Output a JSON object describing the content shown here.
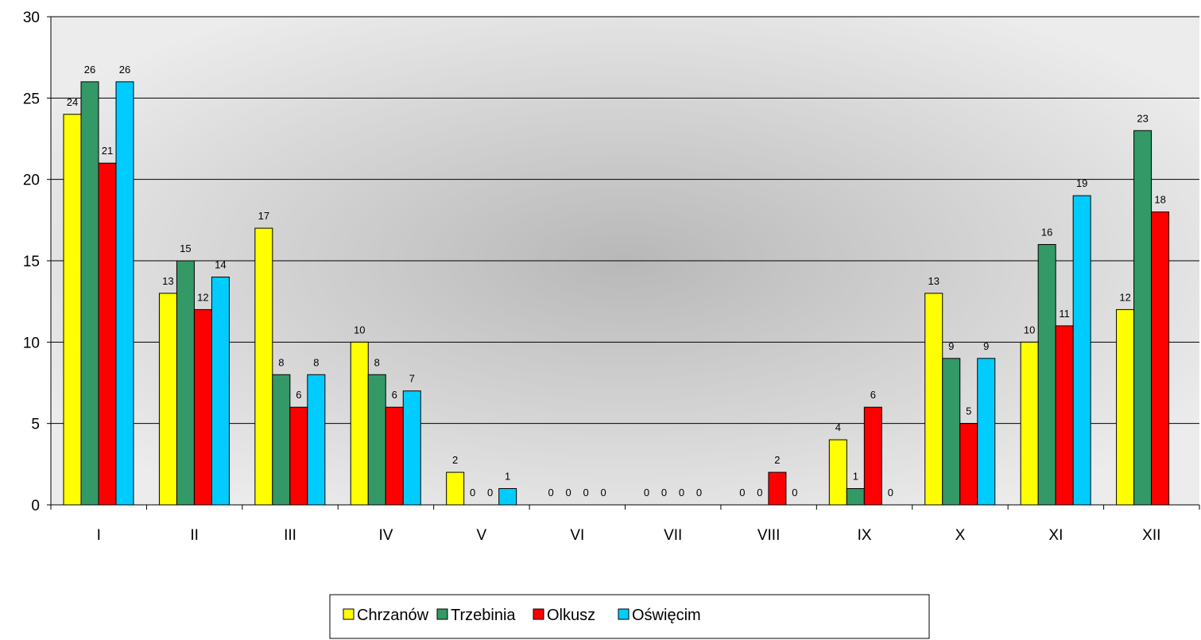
{
  "chart_data": {
    "type": "bar",
    "title": "",
    "xlabel": "",
    "ylabel": "",
    "ylim": [
      0,
      30
    ],
    "yticks": [
      0,
      5,
      10,
      15,
      20,
      25,
      30
    ],
    "grid": "horizontal",
    "legend_position": "bottom-center",
    "categories": [
      "I",
      "II",
      "III",
      "IV",
      "V",
      "VI",
      "VII",
      "VIII",
      "IX",
      "X",
      "XI",
      "XII"
    ],
    "series": [
      {
        "name": "Chrzanów",
        "color": "#FFFF00",
        "values": [
          24,
          13,
          17,
          10,
          2,
          0,
          0,
          0,
          4,
          13,
          10,
          12
        ]
      },
      {
        "name": "Trzebinia",
        "color": "#339966",
        "values": [
          26,
          15,
          8,
          8,
          0,
          0,
          0,
          0,
          1,
          9,
          16,
          23
        ]
      },
      {
        "name": "Olkusz",
        "color": "#FF0000",
        "values": [
          21,
          12,
          6,
          6,
          0,
          0,
          0,
          2,
          6,
          5,
          11,
          18
        ]
      },
      {
        "name": "Oświęcim",
        "color": "#00CCFF",
        "values": [
          26,
          14,
          8,
          7,
          1,
          0,
          0,
          0,
          0,
          9,
          19,
          null
        ]
      }
    ]
  }
}
